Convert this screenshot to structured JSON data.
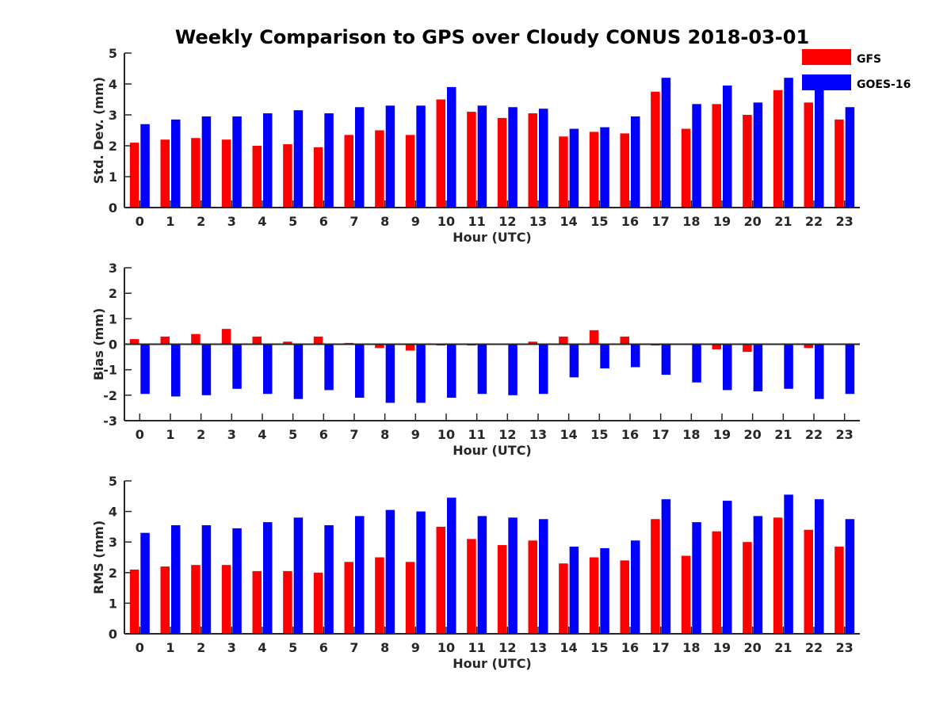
{
  "title": "Weekly Comparison to GPS over Cloudy CONUS 2018-03-01",
  "legend": {
    "placement": "top-right",
    "items": [
      {
        "name": "GFS",
        "color": "#ff0000"
      },
      {
        "name": "GOES-16",
        "color": "#0000ff"
      }
    ]
  },
  "chart_data": [
    {
      "type": "bar",
      "xlabel": "Hour (UTC)",
      "ylabel": "Std. Dev. (mm)",
      "ylim": [
        0,
        5
      ],
      "yticks": [
        0,
        1,
        2,
        3,
        4,
        5
      ],
      "zero_line": false,
      "categories": [
        "0",
        "1",
        "2",
        "3",
        "4",
        "5",
        "6",
        "7",
        "8",
        "9",
        "10",
        "11",
        "12",
        "13",
        "14",
        "15",
        "16",
        "17",
        "18",
        "19",
        "20",
        "21",
        "22",
        "23"
      ],
      "series": [
        {
          "name": "GFS",
          "color": "#ff0000",
          "values": [
            2.1,
            2.2,
            2.25,
            2.2,
            2.0,
            2.05,
            1.95,
            2.35,
            2.5,
            2.35,
            3.5,
            3.1,
            2.9,
            3.05,
            2.3,
            2.45,
            2.4,
            3.75,
            2.55,
            3.35,
            3.0,
            3.8,
            3.4,
            2.85
          ]
        },
        {
          "name": "GOES-16",
          "color": "#0000ff",
          "values": [
            2.7,
            2.85,
            2.95,
            2.95,
            3.05,
            3.15,
            3.05,
            3.25,
            3.3,
            3.3,
            3.9,
            3.3,
            3.25,
            3.2,
            2.55,
            2.6,
            2.95,
            4.2,
            3.35,
            3.95,
            3.4,
            4.2,
            3.8,
            3.25
          ]
        }
      ]
    },
    {
      "type": "bar",
      "xlabel": "Hour (UTC)",
      "ylabel": "Bias (mm)",
      "ylim": [
        -3,
        3
      ],
      "yticks": [
        -3,
        -2,
        -1,
        0,
        1,
        2,
        3
      ],
      "zero_line": true,
      "categories": [
        "0",
        "1",
        "2",
        "3",
        "4",
        "5",
        "6",
        "7",
        "8",
        "9",
        "10",
        "11",
        "12",
        "13",
        "14",
        "15",
        "16",
        "17",
        "18",
        "19",
        "20",
        "21",
        "22",
        "23"
      ],
      "series": [
        {
          "name": "GFS",
          "color": "#ff0000",
          "values": [
            0.2,
            0.3,
            0.4,
            0.6,
            0.3,
            0.1,
            0.3,
            0.05,
            -0.15,
            -0.25,
            -0.05,
            -0.05,
            0.0,
            0.1,
            0.3,
            0.55,
            0.3,
            -0.05,
            0.0,
            -0.2,
            -0.3,
            0.0,
            -0.15,
            0.03
          ]
        },
        {
          "name": "GOES-16",
          "color": "#0000ff",
          "values": [
            -1.95,
            -2.05,
            -2.0,
            -1.75,
            -1.95,
            -2.15,
            -1.8,
            -2.1,
            -2.3,
            -2.3,
            -2.1,
            -1.95,
            -2.0,
            -1.95,
            -1.3,
            -0.95,
            -0.9,
            -1.2,
            -1.5,
            -1.8,
            -1.85,
            -1.75,
            -2.15,
            -1.95
          ]
        }
      ]
    },
    {
      "type": "bar",
      "xlabel": "Hour (UTC)",
      "ylabel": "RMS (mm)",
      "ylim": [
        0,
        5
      ],
      "yticks": [
        0,
        1,
        2,
        3,
        4,
        5
      ],
      "zero_line": false,
      "categories": [
        "0",
        "1",
        "2",
        "3",
        "4",
        "5",
        "6",
        "7",
        "8",
        "9",
        "10",
        "11",
        "12",
        "13",
        "14",
        "15",
        "16",
        "17",
        "18",
        "19",
        "20",
        "21",
        "22",
        "23"
      ],
      "series": [
        {
          "name": "GFS",
          "color": "#ff0000",
          "values": [
            2.1,
            2.2,
            2.25,
            2.25,
            2.05,
            2.05,
            2.0,
            2.35,
            2.5,
            2.35,
            3.5,
            3.1,
            2.9,
            3.05,
            2.3,
            2.5,
            2.4,
            3.75,
            2.55,
            3.35,
            3.0,
            3.8,
            3.4,
            2.85
          ]
        },
        {
          "name": "GOES-16",
          "color": "#0000ff",
          "values": [
            3.3,
            3.55,
            3.55,
            3.45,
            3.65,
            3.8,
            3.55,
            3.85,
            4.05,
            4.0,
            4.45,
            3.85,
            3.8,
            3.75,
            2.85,
            2.8,
            3.05,
            4.4,
            3.65,
            4.35,
            3.85,
            4.55,
            4.4,
            3.75
          ]
        }
      ]
    }
  ]
}
